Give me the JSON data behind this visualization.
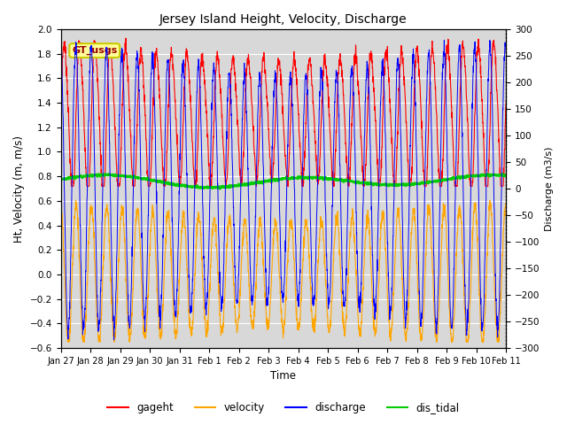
{
  "title": "Jersey Island Height, Velocity, Discharge",
  "xlabel": "Time",
  "ylabel_left": "Ht, Velocity (m, m/s)",
  "ylabel_right": "Discharge (m3/s)",
  "ylim_left": [
    -0.6,
    2.0
  ],
  "ylim_right": [
    -300,
    300
  ],
  "xtick_labels": [
    "Jan 27",
    "Jan 28",
    "Jan 29",
    "Jan 30",
    "Jan 31",
    "Feb 1",
    "Feb 2",
    "Feb 3",
    "Feb 4",
    "Feb 5",
    "Feb 6",
    "Feb 7",
    "Feb 8",
    "Feb 9",
    "Feb 10",
    "Feb 11"
  ],
  "annotation_text": "GT_usgs",
  "annotation_bg": "#ffff99",
  "annotation_border": "#cccc00",
  "colors": {
    "gageht": "#ff0000",
    "velocity": "#ffa500",
    "discharge": "#0000ff",
    "dis_tidal": "#00cc00"
  },
  "background_fill": "#d8d8d8",
  "fig_bg": "#ffffff",
  "grid_color": "#ffffff",
  "n_days": 15,
  "tidal_period_hours": 12.4,
  "samples_per_hour": 6,
  "figsize": [
    6.4,
    4.8
  ],
  "dpi": 100
}
